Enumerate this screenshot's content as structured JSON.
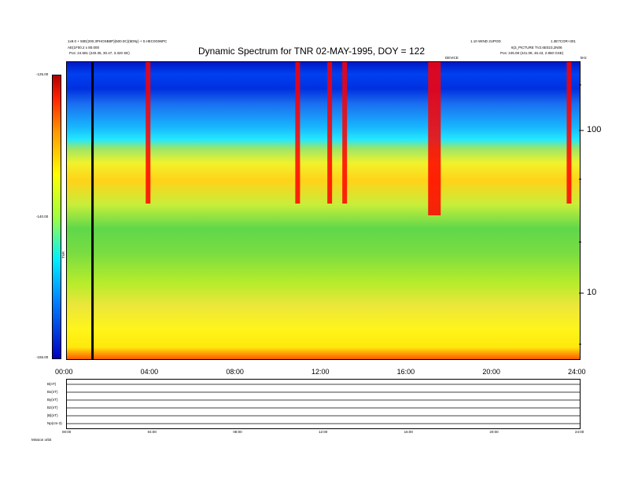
{
  "header": {
    "title": "Dynamic Spectrum for TNR 02-MAY-1995, DOY = 122",
    "left_line1": "1x9.0 + 50E(200.3PHOSB8P)(500.0C)(5D9y) + 0.HEC0G96PC",
    "left_line2": "AE(1F00.2 x 80.000",
    "left_line3": "Pos:  24.581 (240.35, 30.47, 3.320 SE)",
    "right_line1": "1.10 WIND 2UPOD",
    "right_line1b": "1.3E7COR+301",
    "right_line2": "6(3_PICTURE TV2.6E023,2N06",
    "right_line3": "Pos:  245.08 (241.08, 46.43, 2.860 GSE)",
    "marker_label": "DEVICE",
    "corner_label": "kHz"
  },
  "colorbar": {
    "top_label": "-125.00",
    "mid_label": "-140.00",
    "bottom_label": "-155.00",
    "axis_label": "TNR"
  },
  "chart_data": {
    "type": "heatmap",
    "title": "Dynamic Spectrum for TNR 02-MAY-1995, DOY = 122",
    "x_tick_labels": [
      "00:00",
      "04:00",
      "08:00",
      "12:00",
      "16:00",
      "20:00",
      "24:00"
    ],
    "x_range_hours": [
      0,
      24
    ],
    "y_scale": "log",
    "y_tick_labels": [
      "100",
      "10"
    ],
    "colorbar_range": [
      -155.0,
      -125.0
    ],
    "colorbar_ticks": [
      "-125.00",
      "-140.00",
      "-155.00"
    ],
    "bright_event_hours": [
      3.8,
      10.8,
      12.3,
      13.0,
      17.2,
      23.5
    ],
    "marker_hour": 1.2,
    "bottom_panel": {
      "row_labels": [
        "B(nT)",
        "Bx(nT)",
        "By(nT)",
        "Bz(nT)",
        "|B|(nT)",
        "Np(cm-3)"
      ],
      "x_tick_labels": [
        "00:00",
        "04:00",
        "08:00",
        "12:00",
        "16:00",
        "20:00",
        "24:00"
      ],
      "footer_label": "Mission   orbit"
    }
  },
  "colors": {
    "hot": "#ff0000",
    "bright": "#ffff00",
    "mid": "#66dd44",
    "cold": "#0020d0"
  }
}
